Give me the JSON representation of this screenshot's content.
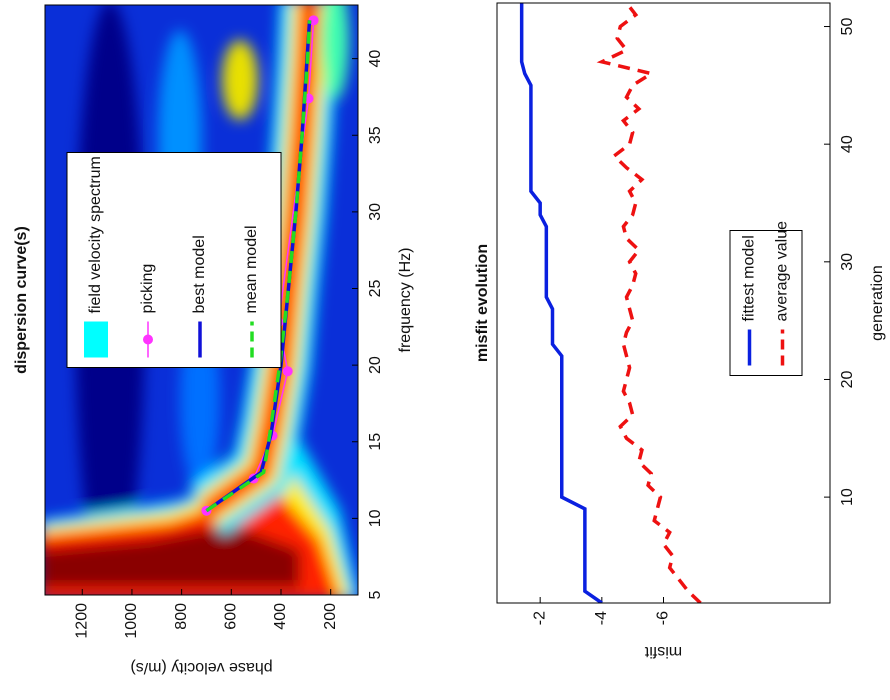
{
  "chart_data": [
    {
      "type": "line",
      "title": "dispersion curve(s)",
      "x_label": "frequency (Hz)",
      "y_label": "phase velocity (m/s)",
      "xlim": [
        5,
        43.5
      ],
      "ylim": [
        90,
        1350
      ],
      "xticks": [
        5,
        10,
        15,
        20,
        25,
        30,
        35,
        40
      ],
      "yticks": [
        200,
        400,
        600,
        800,
        1000,
        1200
      ],
      "legend": "upper center",
      "spectrum": {
        "name": "field velocity spectrum",
        "color": "#00ffff"
      },
      "series": [
        {
          "name": "picking",
          "color": "#ff33ff",
          "marker": "circle",
          "dash": false,
          "x": [
            10.5,
            12.6,
            15.4,
            19.6,
            22.8,
            37.4,
            42.5
          ],
          "values": [
            700,
            510,
            434,
            373,
            410,
            289,
            269
          ]
        },
        {
          "name": "best model",
          "color": "#1010d8",
          "dash": false,
          "x": [
            10.5,
            13,
            15.5,
            20,
            25,
            30,
            35,
            40,
            42.5
          ],
          "values": [
            700,
            480,
            440,
            400,
            370,
            340,
            315,
            295,
            285
          ]
        },
        {
          "name": "mean model",
          "color": "#22dd22",
          "dash": true,
          "x": [
            10.5,
            13,
            15.5,
            20,
            25,
            30,
            35,
            40,
            42.5
          ],
          "values": [
            700,
            470,
            445,
            405,
            370,
            340,
            315,
            293,
            285
          ]
        }
      ]
    },
    {
      "type": "line",
      "title": "misfit evolution",
      "x_label": "generation",
      "y_label": "misfit",
      "xlim": [
        1,
        52
      ],
      "ylim": [
        -11.4,
        -0.6
      ],
      "xticks": [
        10,
        20,
        30,
        40,
        50
      ],
      "yticks": [
        -6,
        -4,
        -2
      ],
      "legend": "lower center",
      "series": [
        {
          "name": "fittest model",
          "color": "#0a20e0",
          "dash": false,
          "x": [
            1,
            2,
            3,
            4,
            5,
            6,
            7,
            8,
            9,
            10,
            11,
            12,
            13,
            14,
            15,
            16,
            17,
            18,
            19,
            20,
            21,
            22,
            23,
            24,
            25,
            26,
            27,
            28,
            29,
            30,
            31,
            32,
            33,
            34,
            35,
            36,
            37,
            38,
            39,
            40,
            41,
            42,
            43,
            44,
            45,
            46,
            47,
            48,
            49,
            50,
            51,
            52
          ],
          "values": [
            -4,
            -3.45,
            -3.45,
            -3.45,
            -3.45,
            -3.45,
            -3.45,
            -3.45,
            -3.45,
            -2.7,
            -2.7,
            -2.7,
            -2.7,
            -2.7,
            -2.7,
            -2.7,
            -2.7,
            -2.7,
            -2.7,
            -2.7,
            -2.7,
            -2.7,
            -2.4,
            -2.4,
            -2.4,
            -2.4,
            -2.2,
            -2.2,
            -2.2,
            -2.2,
            -2.2,
            -2.2,
            -2.2,
            -2,
            -2,
            -1.7,
            -1.7,
            -1.7,
            -1.7,
            -1.7,
            -1.7,
            -1.7,
            -1.7,
            -1.7,
            -1.7,
            -1.5,
            -1.4,
            -1.4,
            -1.4,
            -1.4,
            -1.4,
            -1.4
          ]
        },
        {
          "name": "average value",
          "color": "#ee1111",
          "dash": true,
          "x": [
            1,
            2,
            3,
            4,
            5,
            6,
            7,
            8,
            9,
            10,
            11,
            12,
            13,
            14,
            15,
            16,
            17,
            18,
            19,
            20,
            21,
            22,
            23,
            24,
            25,
            26,
            27,
            28,
            29,
            30,
            31,
            32,
            33,
            34,
            35,
            36,
            37,
            38,
            39,
            40,
            41,
            42,
            43,
            44,
            45,
            46,
            47,
            48,
            49,
            50,
            51,
            52
          ],
          "values": [
            -7.2,
            -6.8,
            -6.5,
            -6.2,
            -6.3,
            -6,
            -6.2,
            -5.7,
            -5.8,
            -5.9,
            -5.5,
            -5.6,
            -5.2,
            -5.3,
            -4.8,
            -4.6,
            -5,
            -4.9,
            -4.7,
            -4.8,
            -4.9,
            -4.8,
            -4.7,
            -4.8,
            -5,
            -4.9,
            -4.8,
            -5,
            -5.1,
            -4.9,
            -5.2,
            -4.8,
            -4.7,
            -5,
            -5.1,
            -4.9,
            -5.3,
            -4.8,
            -4.4,
            -4.9,
            -5,
            -4.7,
            -5.2,
            -4.8,
            -5,
            -5.6,
            -4,
            -4.8,
            -4.5,
            -4.6,
            -5.1,
            -4.8
          ]
        }
      ]
    }
  ]
}
